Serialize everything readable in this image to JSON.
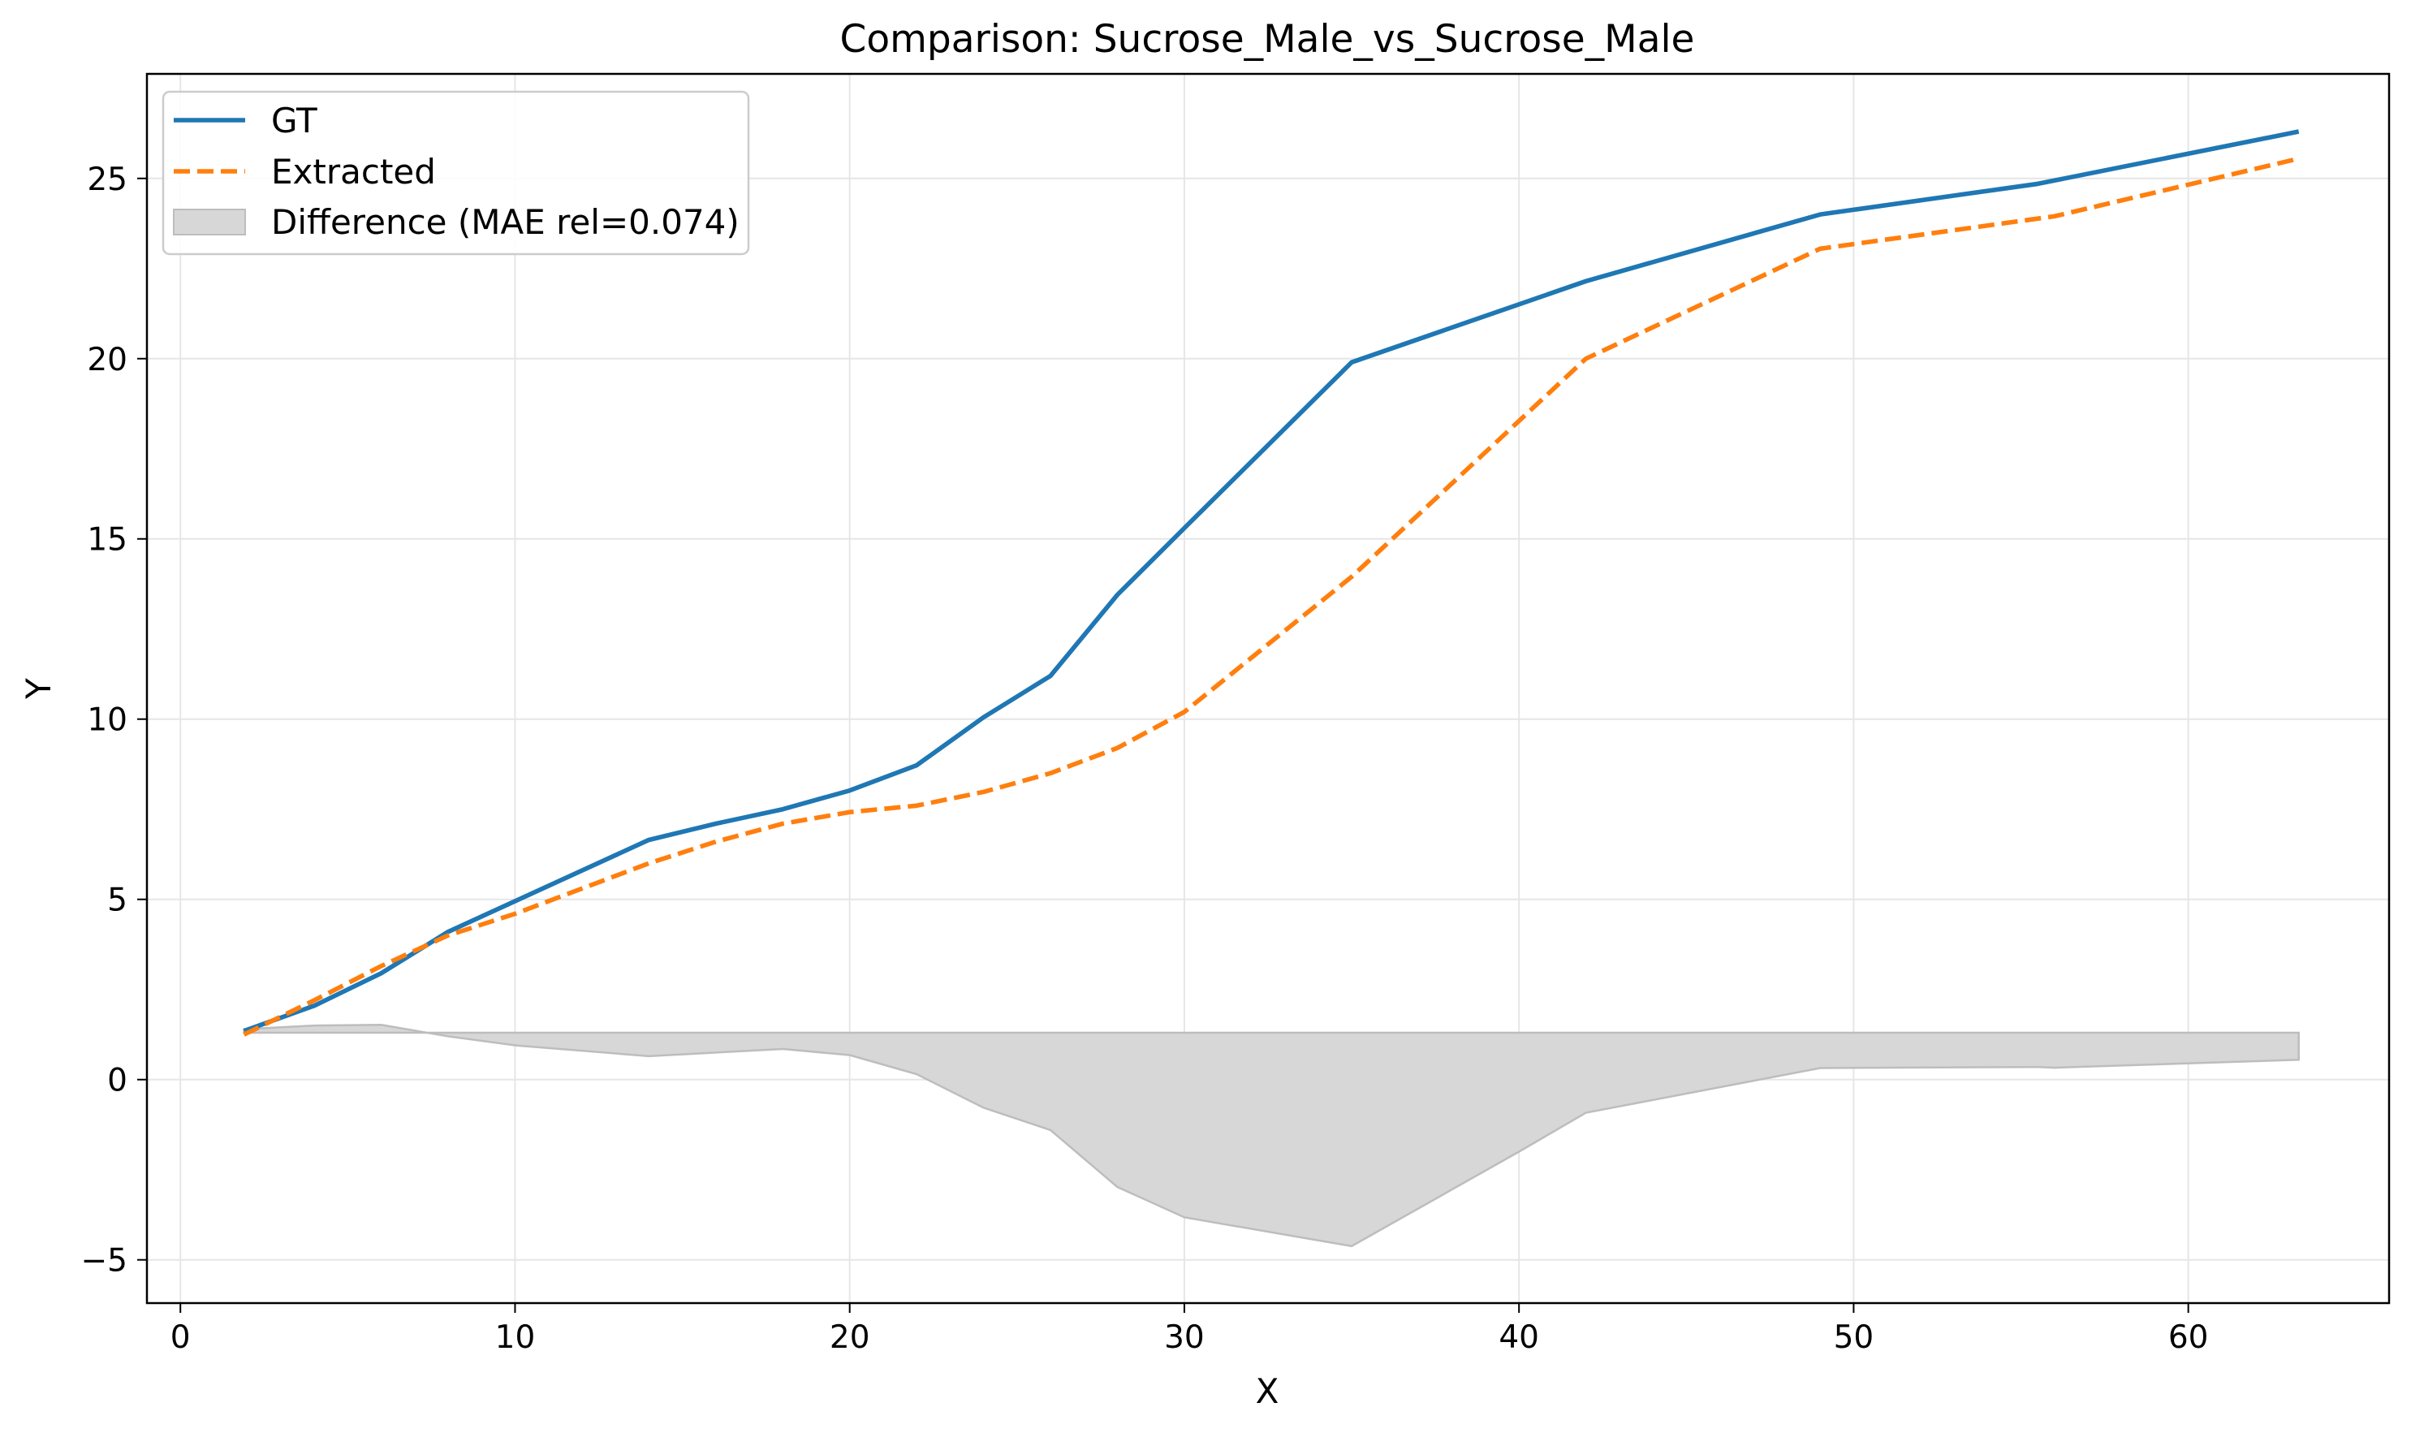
{
  "chart_data": {
    "type": "line",
    "title": "Comparison: Sucrose_Male_vs_Sucrose_Male",
    "xlabel": "X",
    "ylabel": "Y",
    "xlim": [
      -1.0,
      66.0
    ],
    "ylim": [
      -6.2,
      27.9
    ],
    "xticks": [
      0,
      10,
      20,
      30,
      40,
      50,
      60
    ],
    "yticks": [
      -5,
      0,
      5,
      10,
      15,
      20,
      25
    ],
    "xtick_labels": [
      "0",
      "10",
      "20",
      "30",
      "40",
      "50",
      "60"
    ],
    "ytick_labels": [
      "−5",
      "0",
      "5",
      "10",
      "15",
      "20",
      "25"
    ],
    "grid": true,
    "legend_position": "top-left",
    "series": [
      {
        "name": "GT",
        "kind": "line",
        "style": "solid",
        "color": "#1f77b4",
        "x": [
          1.9,
          4.0,
          6.0,
          8.0,
          10.0,
          12.0,
          14.0,
          16.0,
          18.0,
          20.0,
          22.0,
          24.0,
          26.0,
          28.0,
          30.0,
          35.0,
          42.0,
          49.0,
          55.5,
          63.3
        ],
        "y": [
          1.35,
          2.05,
          2.95,
          4.1,
          4.95,
          5.8,
          6.65,
          7.1,
          7.5,
          8.02,
          8.72,
          10.05,
          11.2,
          13.45,
          15.3,
          19.9,
          22.15,
          24.0,
          24.85,
          26.3
        ]
      },
      {
        "name": "Extracted",
        "kind": "line",
        "style": "dashed",
        "color": "#ff7f0e",
        "x": [
          1.9,
          4.0,
          6.0,
          8.0,
          10.0,
          12.0,
          14.0,
          16.0,
          18.0,
          20.0,
          22.0,
          24.0,
          26.0,
          28.0,
          30.0,
          35.0,
          42.0,
          49.0,
          56.0,
          63.3
        ],
        "y": [
          1.25,
          2.2,
          3.15,
          4.0,
          4.6,
          5.3,
          6.0,
          6.6,
          7.1,
          7.42,
          7.6,
          7.98,
          8.5,
          9.2,
          10.2,
          13.95,
          20.0,
          23.05,
          23.95,
          25.55
        ]
      },
      {
        "name": "Difference (MAE rel=0.074)",
        "kind": "area",
        "color": "#d7d7d7",
        "edge_color": "#bdbdbd",
        "baseline": 1.3,
        "x": [
          1.9,
          4.0,
          6.0,
          8.0,
          10.0,
          14.0,
          18.0,
          20.0,
          22.0,
          24.0,
          26.0,
          28.0,
          30.0,
          35.0,
          40.0,
          42.0,
          49.0,
          55.5,
          56.0,
          63.3
        ],
        "y": [
          1.4,
          1.5,
          1.52,
          1.2,
          0.95,
          0.65,
          0.85,
          0.68,
          0.15,
          -0.78,
          -1.4,
          -2.98,
          -3.82,
          -4.62,
          -2.0,
          -0.92,
          0.32,
          0.35,
          0.33,
          0.55
        ]
      }
    ]
  }
}
